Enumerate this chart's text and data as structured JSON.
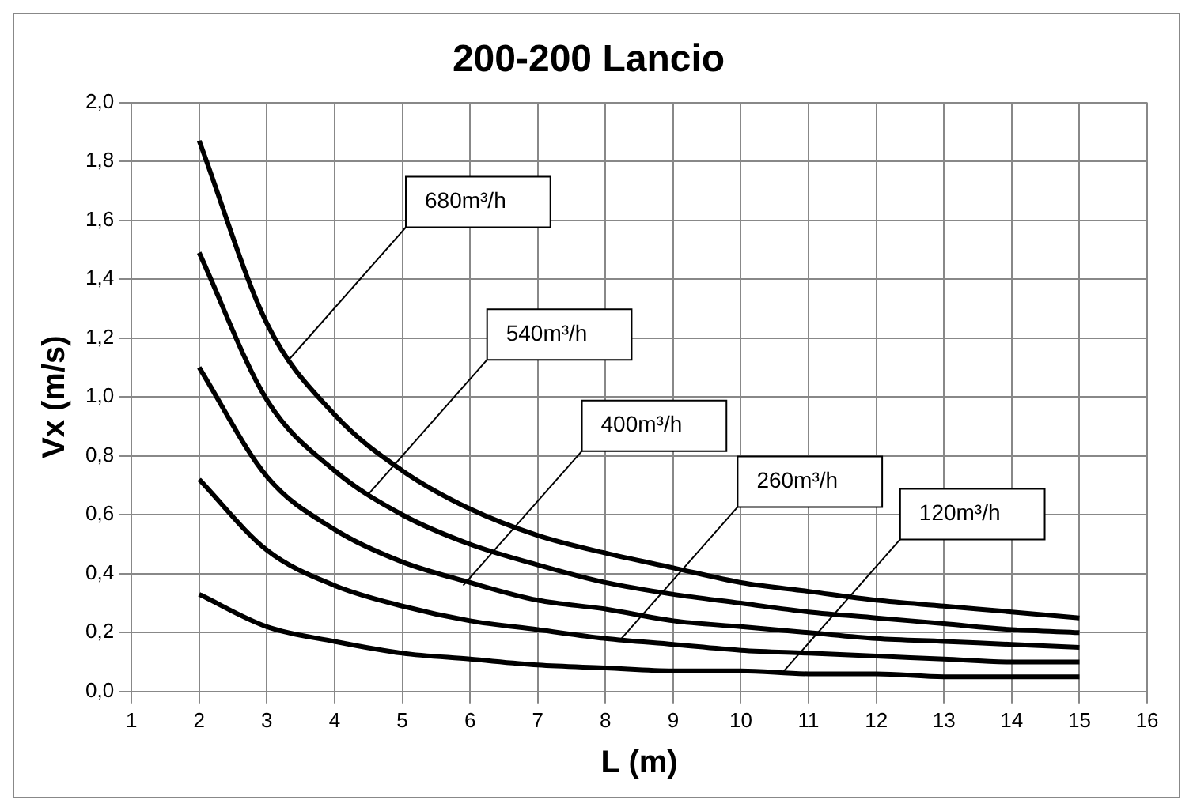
{
  "chart_data": {
    "type": "line",
    "title": "200-200 Lancio",
    "xlabel": "L (m)",
    "ylabel": "Vx (m/s)",
    "x": [
      2,
      3,
      4,
      5,
      6,
      7,
      8,
      9,
      10,
      11,
      12,
      13,
      14,
      15
    ],
    "series": [
      {
        "color": "#000000",
        "values": [
          1.87,
          1.25,
          0.94,
          0.75,
          0.62,
          0.53,
          0.47,
          0.42,
          0.37,
          0.34,
          0.31,
          0.29,
          0.27,
          0.25
        ]
      },
      {
        "color": "#000000",
        "values": [
          1.49,
          0.99,
          0.75,
          0.6,
          0.5,
          0.43,
          0.37,
          0.33,
          0.3,
          0.27,
          0.25,
          0.23,
          0.21,
          0.2
        ]
      },
      {
        "color": "#000000",
        "values": [
          1.1,
          0.73,
          0.55,
          0.44,
          0.37,
          0.31,
          0.28,
          0.24,
          0.22,
          0.2,
          0.18,
          0.17,
          0.16,
          0.15
        ]
      },
      {
        "color": "#000000",
        "values": [
          0.72,
          0.48,
          0.36,
          0.29,
          0.24,
          0.21,
          0.18,
          0.16,
          0.14,
          0.13,
          0.12,
          0.11,
          0.1,
          0.1
        ]
      },
      {
        "color": "#000000",
        "values": [
          0.33,
          0.22,
          0.17,
          0.13,
          0.11,
          0.09,
          0.08,
          0.07,
          0.07,
          0.06,
          0.06,
          0.05,
          0.05,
          0.05
        ]
      }
    ],
    "xlim": [
      1,
      16
    ],
    "xticks": [
      1,
      2,
      3,
      4,
      5,
      6,
      7,
      8,
      9,
      10,
      11,
      12,
      13,
      14,
      15,
      16
    ],
    "ylim": [
      0,
      2
    ],
    "yticks": [
      {
        "value": 0,
        "label": "0,0"
      },
      {
        "value": 0.2,
        "label": "0,2"
      },
      {
        "value": 0.4,
        "label": "0,4"
      },
      {
        "value": 0.6,
        "label": "0,6"
      },
      {
        "value": 0.8,
        "label": "0,8"
      },
      {
        "value": 1,
        "label": "1,0"
      },
      {
        "value": 1.2,
        "label": "1,2"
      },
      {
        "value": 1.4,
        "label": "1,4"
      },
      {
        "value": 1.6,
        "label": "1,6"
      },
      {
        "value": 1.8,
        "label": "1,8"
      },
      {
        "value": 2,
        "label": "2,0"
      }
    ],
    "annotations": [
      {
        "text": "680m³/h",
        "x": 3.3,
        "y": 1.12
      },
      {
        "text": "540m³/h",
        "x": 4.5,
        "y": 0.67
      },
      {
        "text": "400m³/h",
        "x": 5.9,
        "y": 0.36
      },
      {
        "text": "260m³/h",
        "x": 8.2,
        "y": 0.17
      },
      {
        "text": "120m³/h",
        "x": 10.6,
        "y": 0.06
      }
    ],
    "grid": true,
    "legend": false,
    "marker": "none",
    "line_style": "solid"
  }
}
